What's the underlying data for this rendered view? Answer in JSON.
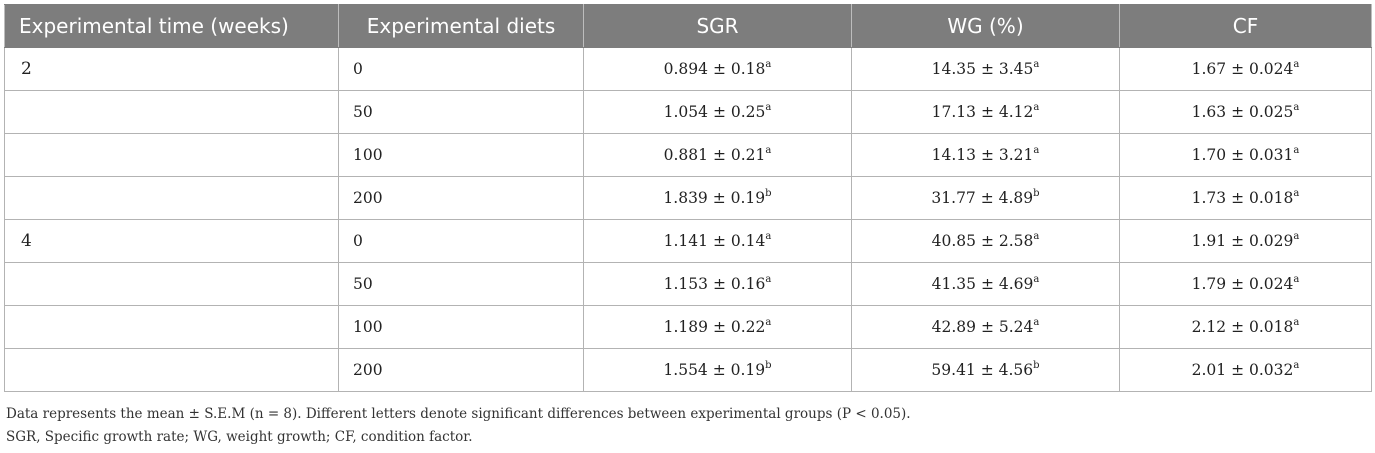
{
  "table": {
    "headers": [
      "Experimental time (weeks)",
      "Experimental diets",
      "SGR",
      "WG (%)",
      "CF"
    ],
    "rows": [
      {
        "time": "2",
        "diet": "0",
        "sgr": "0.894 ± 0.18",
        "sgr_sup": "a",
        "wg": "14.35 ± 3.45",
        "wg_sup": "a",
        "cf": "1.67 ± 0.024",
        "cf_sup": "a"
      },
      {
        "time": "",
        "diet": "50",
        "sgr": "1.054 ± 0.25",
        "sgr_sup": "a",
        "wg": "17.13 ± 4.12",
        "wg_sup": "a",
        "cf": "1.63 ± 0.025",
        "cf_sup": "a"
      },
      {
        "time": "",
        "diet": "100",
        "sgr": "0.881 ± 0.21",
        "sgr_sup": "a",
        "wg": "14.13 ± 3.21",
        "wg_sup": "a",
        "cf": "1.70 ± 0.031",
        "cf_sup": "a"
      },
      {
        "time": "",
        "diet": "200",
        "sgr": "1.839 ± 0.19",
        "sgr_sup": "b",
        "wg": "31.77 ± 4.89",
        "wg_sup": "b",
        "cf": "1.73 ± 0.018",
        "cf_sup": "a"
      },
      {
        "time": "4",
        "diet": "0",
        "sgr": "1.141 ± 0.14",
        "sgr_sup": "a",
        "wg": "40.85 ± 2.58",
        "wg_sup": "a",
        "cf": "1.91 ± 0.029",
        "cf_sup": "a"
      },
      {
        "time": "",
        "diet": "50",
        "sgr": "1.153 ± 0.16",
        "sgr_sup": "a",
        "wg": "41.35 ± 4.69",
        "wg_sup": "a",
        "cf": "1.79 ± 0.024",
        "cf_sup": "a"
      },
      {
        "time": "",
        "diet": "100",
        "sgr": "1.189 ± 0.22",
        "sgr_sup": "a",
        "wg": "42.89 ± 5.24",
        "wg_sup": "a",
        "cf": "2.12 ± 0.018",
        "cf_sup": "a"
      },
      {
        "time": "",
        "diet": "200",
        "sgr": "1.554 ± 0.19",
        "sgr_sup": "b",
        "wg": "59.41 ± 4.56",
        "wg_sup": "b",
        "cf": "2.01 ± 0.032",
        "cf_sup": "a"
      }
    ]
  },
  "footnotes": {
    "line1": "Data represents the mean ± S.E.M (n = 8). Different letters denote significant differences between experimental groups (P < 0.05).",
    "line2": "SGR, Specific growth rate; WG, weight growth; CF, condition factor."
  }
}
